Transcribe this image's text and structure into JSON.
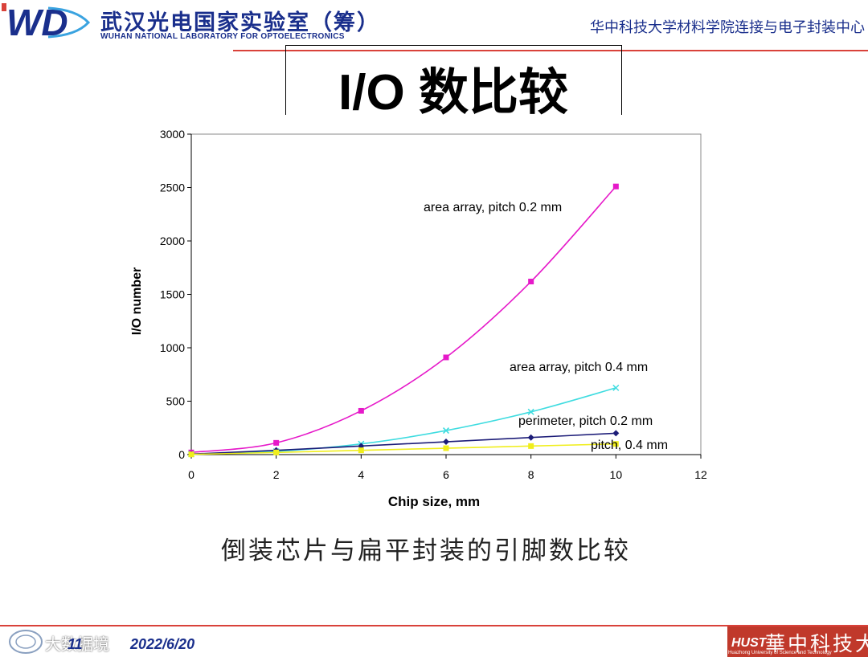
{
  "header": {
    "logo_icon": "wnlo-logo-icon",
    "lab_name_cn": "武汉光电国家实验室（筹）",
    "lab_name_en": "WUHAN NATIONAL LABORATORY FOR OPTOELECTRONICS",
    "department": "华中科技大学材料学院连接与电子封装中心"
  },
  "slide": {
    "title": "I/O 数比较",
    "caption": "倒装芯片与扁平封装的引脚数比较"
  },
  "footer": {
    "page_number": "11",
    "date": "2022/6/20",
    "watermark": "大数据境",
    "university_name": "華中科技大學",
    "university_en": "Huazhong University of Science and Technology",
    "university_logo_icon": "hust-logo-icon"
  },
  "colors": {
    "accent_line": "#d9423a",
    "header_text": "#1a2f8c",
    "area_02": "#e619c9",
    "area_04": "#3fdce0",
    "perim_02": "#1c1c78",
    "perim_04": "#f0ee1c"
  },
  "chart_data": {
    "type": "line",
    "title": "",
    "xlabel": "Chip size, mm",
    "ylabel": "I/O number",
    "xlim": [
      0,
      12
    ],
    "ylim": [
      0,
      3000
    ],
    "xticks": [
      0,
      2,
      4,
      6,
      8,
      10,
      12
    ],
    "yticks": [
      0,
      500,
      1000,
      1500,
      2000,
      2500,
      3000
    ],
    "grid": false,
    "series": [
      {
        "name": "area array, pitch 0.2 mm",
        "marker": "square",
        "color": "#e619c9",
        "x": [
          0,
          2,
          4,
          6,
          8,
          10
        ],
        "y": [
          20,
          110,
          410,
          910,
          1620,
          2510
        ]
      },
      {
        "name": "area array, pitch 0.4 mm",
        "marker": "x",
        "color": "#3fdce0",
        "x": [
          0,
          2,
          4,
          6,
          8,
          10
        ],
        "y": [
          5,
          30,
          100,
          225,
          400,
          625
        ]
      },
      {
        "name": "perimeter, pitch 0.2 mm",
        "marker": "diamond",
        "color": "#1c1c78",
        "x": [
          0,
          2,
          4,
          6,
          8,
          10
        ],
        "y": [
          5,
          40,
          80,
          120,
          160,
          200
        ]
      },
      {
        "name": "pitch, 0.4 mm",
        "marker": "square",
        "color": "#f0ee1c",
        "x": [
          0,
          2,
          4,
          6,
          8,
          10
        ],
        "y": [
          2,
          20,
          40,
          60,
          80,
          100
        ]
      }
    ]
  }
}
